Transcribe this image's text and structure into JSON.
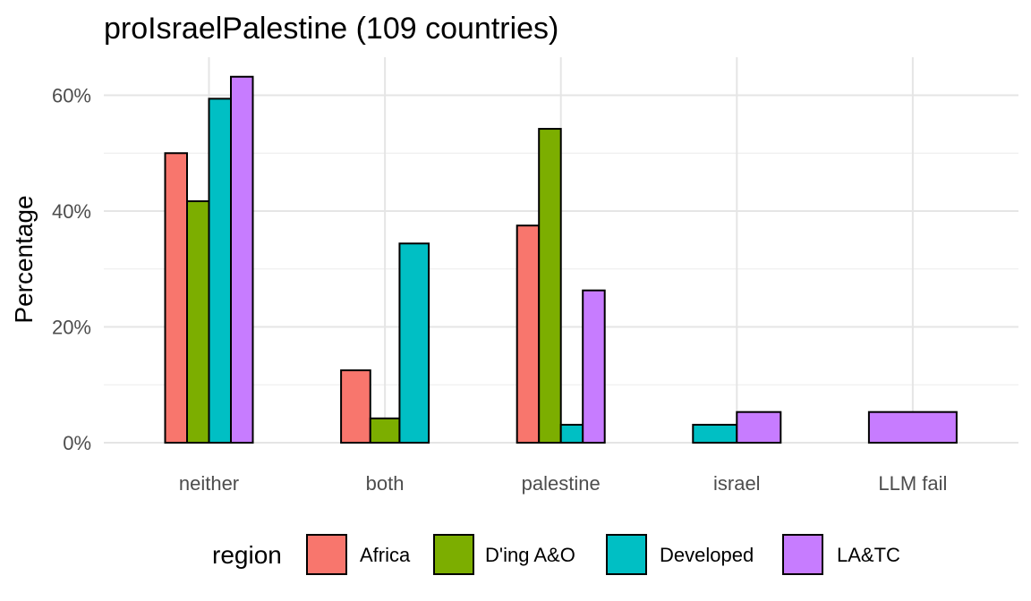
{
  "chart_data": {
    "type": "bar",
    "title": "proIsraelPalestine (109 countries)",
    "xlabel": "",
    "ylabel": "Percentage",
    "categories": [
      "neither",
      "both",
      "palestine",
      "israel",
      "LLM fail"
    ],
    "ylim": [
      0,
      66
    ],
    "yticks": [
      0,
      20,
      40,
      60
    ],
    "ytick_labels": [
      "0%",
      "20%",
      "40%",
      "60%"
    ],
    "legend_title": "region",
    "legend_position": "bottom",
    "grid": true,
    "series": [
      {
        "name": "Africa",
        "color": "#F8766D",
        "values": [
          50.0,
          12.5,
          37.5,
          null,
          null
        ]
      },
      {
        "name": "D'ing A&O",
        "color": "#7CAE00",
        "values": [
          41.7,
          4.2,
          54.2,
          null,
          null
        ]
      },
      {
        "name": "Developed",
        "color": "#00BFC4",
        "values": [
          59.4,
          34.4,
          3.1,
          3.1,
          null
        ]
      },
      {
        "name": "LA&TC",
        "color": "#C77CFF",
        "values": [
          63.2,
          null,
          26.3,
          5.3,
          5.3
        ]
      }
    ]
  }
}
